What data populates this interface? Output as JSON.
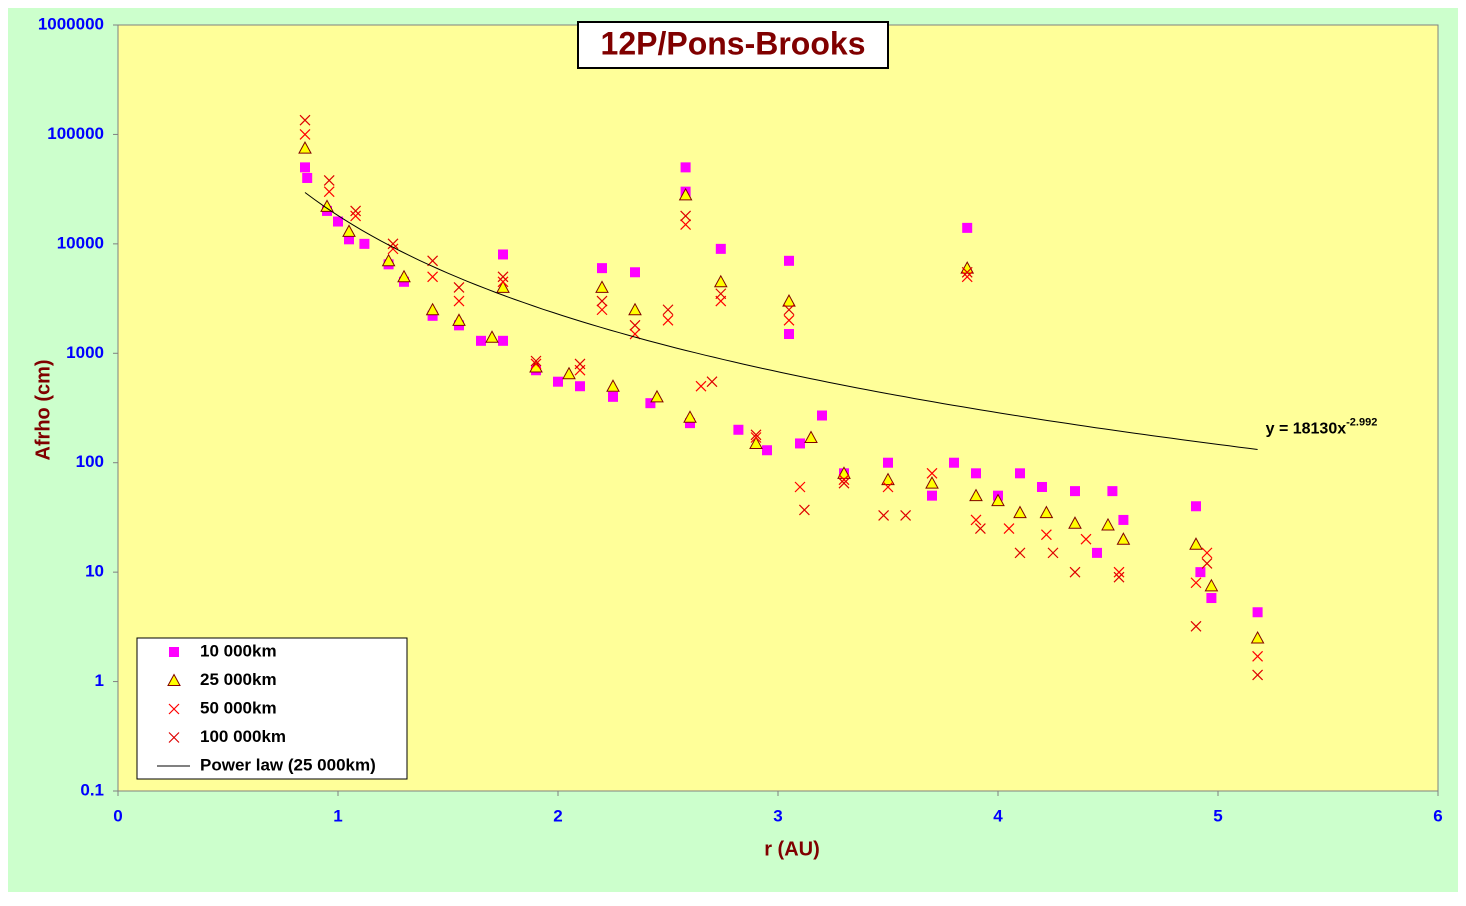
{
  "chart_data": {
    "type": "scatter",
    "title": "12P/Pons-Brooks",
    "xlabel": "r (AU)",
    "ylabel": "Afrho (cm)",
    "xlim": [
      0,
      6
    ],
    "xticks": [
      0,
      1,
      2,
      3,
      4,
      5,
      6
    ],
    "ylim": [
      0.1,
      1000000
    ],
    "yticks": [
      0.1,
      1,
      10,
      100,
      1000,
      10000,
      100000,
      1000000
    ],
    "ylog": true,
    "grid": false,
    "legend": "lower left",
    "series": [
      {
        "name": "10 000km",
        "color": "#ff00ff",
        "marker": "square",
        "x": [
          0.85,
          0.86,
          0.95,
          1.0,
          1.05,
          1.12,
          1.23,
          1.3,
          1.43,
          1.55,
          1.65,
          1.75,
          1.75,
          1.9,
          2.0,
          2.1,
          2.2,
          2.25,
          2.35,
          2.42,
          2.58,
          2.58,
          2.6,
          2.74,
          2.82,
          2.95,
          3.05,
          3.05,
          3.1,
          3.2,
          3.3,
          3.5,
          3.7,
          3.8,
          3.86,
          3.9,
          4.0,
          4.1,
          4.2,
          4.35,
          4.45,
          4.52,
          4.57,
          4.9,
          4.92,
          4.97,
          5.18
        ],
        "values": [
          50000,
          40000,
          20000,
          16000,
          11000,
          10000,
          6500,
          4500,
          2200,
          1800,
          1300,
          8000,
          1300,
          700,
          550,
          500,
          6000,
          400,
          5500,
          350,
          50000,
          30000,
          230,
          9000,
          200,
          130,
          7000,
          1500,
          150,
          270,
          80,
          100,
          50,
          100,
          14000,
          80,
          50,
          80,
          60,
          55,
          15,
          55,
          30,
          40,
          10,
          5.8,
          4.3
        ]
      },
      {
        "name": "25 000km",
        "color": "#ffff00",
        "stroke": "#800000",
        "marker": "triangle",
        "x": [
          0.85,
          0.95,
          1.05,
          1.23,
          1.3,
          1.43,
          1.55,
          1.7,
          1.75,
          1.9,
          2.05,
          2.2,
          2.25,
          2.35,
          2.45,
          2.58,
          2.6,
          2.74,
          2.9,
          3.05,
          3.15,
          3.3,
          3.5,
          3.7,
          3.86,
          3.9,
          4.0,
          4.1,
          4.22,
          4.35,
          4.5,
          4.57,
          4.9,
          4.97,
          5.18
        ],
        "values": [
          75000,
          22000,
          13000,
          7000,
          5000,
          2500,
          2000,
          1400,
          4000,
          750,
          650,
          4000,
          500,
          2500,
          400,
          28000,
          260,
          4500,
          150,
          3000,
          170,
          80,
          70,
          65,
          6000,
          50,
          45,
          35,
          35,
          28,
          27,
          20,
          18,
          7.5,
          2.5
        ]
      },
      {
        "name": "50 000km",
        "color": "#ff0000",
        "marker": "x",
        "x": [
          0.85,
          0.96,
          1.08,
          1.25,
          1.43,
          1.55,
          1.75,
          1.9,
          2.1,
          2.2,
          2.35,
          2.5,
          2.58,
          2.65,
          2.74,
          2.9,
          3.05,
          3.1,
          3.3,
          3.5,
          3.7,
          3.86,
          3.9,
          4.05,
          4.22,
          4.4,
          4.55,
          4.9,
          4.95,
          5.18
        ],
        "values": [
          100000,
          30000,
          18000,
          9000,
          5000,
          3000,
          4500,
          800,
          700,
          2500,
          1500,
          2000,
          15000,
          500,
          3000,
          170,
          2000,
          60,
          70,
          60,
          80,
          5000,
          30,
          25,
          22,
          20,
          10,
          8,
          15,
          1.7
        ]
      },
      {
        "name": "100 000km",
        "color": "#dd0000",
        "marker": "x",
        "x": [
          0.85,
          0.96,
          1.08,
          1.25,
          1.43,
          1.55,
          1.75,
          1.9,
          2.1,
          2.2,
          2.35,
          2.5,
          2.58,
          2.7,
          2.74,
          2.9,
          3.05,
          3.12,
          3.3,
          3.48,
          3.58,
          3.86,
          3.92,
          4.1,
          4.25,
          4.35,
          4.55,
          4.9,
          4.95,
          5.18
        ],
        "values": [
          135000,
          38000,
          20000,
          10000,
          7000,
          4000,
          5000,
          850,
          800,
          3000,
          1800,
          2500,
          18000,
          550,
          3500,
          180,
          2500,
          37,
          65,
          33,
          33,
          5500,
          25,
          15,
          15,
          10,
          9,
          3.2,
          12,
          1.15
        ]
      }
    ],
    "fit": {
      "name": "Power law (25 000km)",
      "color": "#000000",
      "a": 18130,
      "b": -2.992,
      "x_from": 0.85,
      "x_to": 5.18,
      "label": "y = 18130x"
    }
  }
}
